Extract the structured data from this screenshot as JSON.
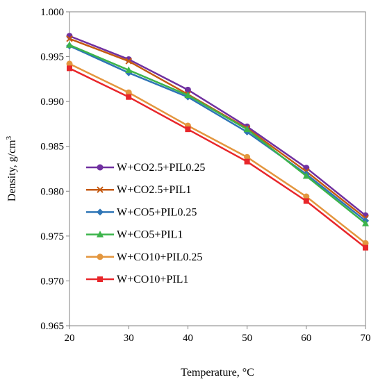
{
  "chart_data": {
    "type": "line",
    "xlabel": "Temperature, °C",
    "ylabel_main": "Density, g/cm",
    "ylabel_sup": "3",
    "x": [
      20,
      30,
      40,
      50,
      60,
      70
    ],
    "xlim": [
      20,
      70
    ],
    "ylim": [
      0.965,
      1.0
    ],
    "x_ticks": [
      "20",
      "30",
      "40",
      "50",
      "60",
      "70"
    ],
    "y_ticks": [
      "0.965",
      "0.970",
      "0.975",
      "0.980",
      "0.985",
      "0.990",
      "0.995",
      "1.000"
    ],
    "grid": false,
    "legend_position": "center-left",
    "series": [
      {
        "name": "W+CO2.5+PIL0.25",
        "color": "#7030a0",
        "marker": "circle",
        "values": [
          0.9973,
          0.9947,
          0.9913,
          0.9872,
          0.9826,
          0.9773
        ]
      },
      {
        "name": "W+CO2.5+PIL1",
        "color": "#c55a11",
        "marker": "x",
        "values": [
          0.997,
          0.9945,
          0.9908,
          0.987,
          0.9822,
          0.977
        ]
      },
      {
        "name": "W+CO5+PIL0.25",
        "color": "#2e75b6",
        "marker": "diamond",
        "values": [
          0.9962,
          0.9932,
          0.9905,
          0.9866,
          0.9819,
          0.9767
        ]
      },
      {
        "name": "W+CO5+PIL1",
        "color": "#3cb44b",
        "marker": "triangle",
        "values": [
          0.9963,
          0.9935,
          0.9907,
          0.9869,
          0.9817,
          0.9764
        ]
      },
      {
        "name": "W+CO10+PIL0.25",
        "color": "#e3963e",
        "marker": "circle",
        "values": [
          0.9942,
          0.991,
          0.9873,
          0.9838,
          0.9794,
          0.9742
        ]
      },
      {
        "name": "W+CO10+PIL1",
        "color": "#e8262a",
        "marker": "square",
        "values": [
          0.9937,
          0.9905,
          0.9869,
          0.9833,
          0.9789,
          0.9737
        ]
      }
    ]
  }
}
